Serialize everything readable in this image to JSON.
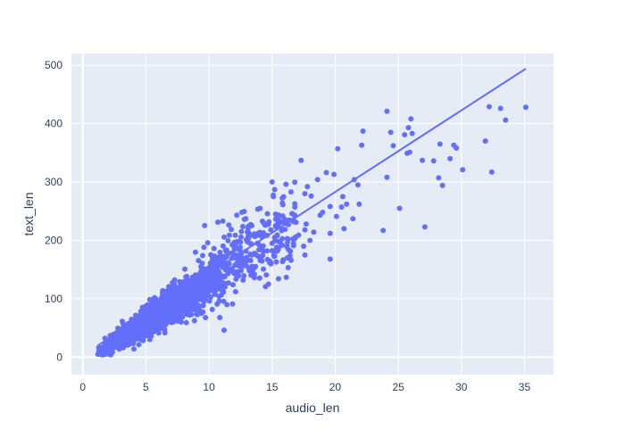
{
  "chart_data": {
    "type": "scatter",
    "xlabel": "audio_len",
    "ylabel": "text_len",
    "xlim": [
      -0.9,
      37.3
    ],
    "ylim": [
      -30,
      520
    ],
    "x_ticks": [
      0,
      5,
      10,
      15,
      20,
      25,
      30,
      35
    ],
    "y_ticks": [
      0,
      100,
      200,
      300,
      400,
      500
    ],
    "x_tick_labels": [
      "0",
      "5",
      "10",
      "15",
      "20",
      "25",
      "30",
      "35"
    ],
    "y_tick_labels": [
      "0",
      "100",
      "200",
      "300",
      "400",
      "500"
    ],
    "grid": true,
    "legend": "none",
    "colors": {
      "plot_bg": "#e5ecf6",
      "grid": "#ffffff",
      "marker": "#636efa",
      "text": "#2a3f5f"
    },
    "trendline": {
      "x": [
        1.2,
        35.1
      ],
      "y": [
        20,
        494
      ]
    },
    "scatter_cloud": {
      "description_points": [
        [
          1.2,
          5
        ],
        [
          1.5,
          10
        ],
        [
          2,
          15
        ],
        [
          2.5,
          22
        ],
        [
          3,
          30
        ],
        [
          3.5,
          40
        ],
        [
          4,
          50
        ],
        [
          4.5,
          55
        ],
        [
          5,
          65
        ],
        [
          5.5,
          75
        ],
        [
          6,
          85
        ],
        [
          6.5,
          90
        ],
        [
          7,
          100
        ],
        [
          7.5,
          110
        ],
        [
          8,
          120
        ],
        [
          8.5,
          130
        ],
        [
          9,
          140
        ],
        [
          9.5,
          150
        ],
        [
          10,
          160
        ],
        [
          11,
          170
        ],
        [
          12,
          190
        ],
        [
          13,
          200
        ],
        [
          14,
          220
        ],
        [
          15,
          230
        ],
        [
          16,
          250
        ]
      ]
    },
    "points": [
      [
        24.1,
        421
      ],
      [
        32.2,
        429
      ],
      [
        33.1,
        426
      ],
      [
        35.1,
        428
      ],
      [
        33.5,
        406
      ],
      [
        26.0,
        408
      ],
      [
        22.2,
        387
      ],
      [
        24.4,
        385
      ],
      [
        25.8,
        393
      ],
      [
        26.1,
        383
      ],
      [
        25.5,
        381
      ],
      [
        31.9,
        370
      ],
      [
        28.3,
        365
      ],
      [
        24.6,
        362
      ],
      [
        22.1,
        363
      ],
      [
        29.4,
        363
      ],
      [
        29.6,
        358
      ],
      [
        20.2,
        357
      ],
      [
        25.9,
        351
      ],
      [
        25.7,
        349
      ],
      [
        26.9,
        337
      ],
      [
        27.8,
        336
      ],
      [
        17.3,
        337
      ],
      [
        29.1,
        340
      ],
      [
        30.1,
        321
      ],
      [
        32.4,
        317
      ],
      [
        19.3,
        316
      ],
      [
        19.9,
        313
      ],
      [
        18.6,
        304
      ],
      [
        24.1,
        308
      ],
      [
        28.2,
        307
      ],
      [
        28.5,
        294
      ],
      [
        21.5,
        304
      ],
      [
        21.8,
        295
      ],
      [
        16.1,
        296
      ],
      [
        16.5,
        283
      ],
      [
        17.8,
        292
      ],
      [
        15.0,
        300
      ],
      [
        15.2,
        287
      ],
      [
        17.6,
        280
      ],
      [
        18.1,
        276
      ],
      [
        20.6,
        275
      ],
      [
        20.9,
        262
      ],
      [
        21.9,
        262
      ],
      [
        19.6,
        258
      ],
      [
        20.5,
        257
      ],
      [
        19.0,
        248
      ],
      [
        25.1,
        255
      ],
      [
        18.8,
        243
      ],
      [
        20.1,
        241
      ],
      [
        16.0,
        236
      ],
      [
        16.7,
        232
      ],
      [
        21.4,
        237
      ],
      [
        17.7,
        228
      ],
      [
        15.3,
        223
      ],
      [
        16.3,
        227
      ],
      [
        17.6,
        218
      ],
      [
        18.3,
        214
      ],
      [
        19.6,
        212
      ],
      [
        20.7,
        220
      ],
      [
        23.8,
        217
      ],
      [
        27.1,
        223
      ],
      [
        15.2,
        205
      ],
      [
        16.2,
        203
      ],
      [
        16.8,
        203
      ],
      [
        17.1,
        209
      ],
      [
        18.0,
        200
      ],
      [
        16.7,
        191
      ],
      [
        17.5,
        190
      ],
      [
        16.3,
        184
      ],
      [
        17.6,
        175
      ],
      [
        19.6,
        168
      ],
      [
        16.2,
        170
      ],
      [
        15.2,
        173
      ],
      [
        16.5,
        166
      ],
      [
        14.8,
        162
      ],
      [
        14.1,
        188
      ],
      [
        14.6,
        182
      ],
      [
        15.0,
        195
      ],
      [
        15.4,
        208
      ],
      [
        13.6,
        211
      ],
      [
        13.1,
        213
      ],
      [
        13.3,
        227
      ],
      [
        12.8,
        236
      ],
      [
        12.2,
        243
      ],
      [
        12.6,
        248
      ],
      [
        10.7,
        231
      ],
      [
        11.1,
        233
      ],
      [
        9.9,
        196
      ],
      [
        9.6,
        188
      ],
      [
        10.4,
        186
      ],
      [
        9.5,
        174
      ],
      [
        10.7,
        165
      ],
      [
        11.6,
        160
      ],
      [
        12.6,
        154
      ],
      [
        13.2,
        148
      ],
      [
        13.6,
        142
      ],
      [
        12.2,
        140
      ],
      [
        10.9,
        138
      ],
      [
        10.6,
        148
      ],
      [
        9.8,
        151
      ],
      [
        9.3,
        138
      ],
      [
        8.9,
        126
      ],
      [
        8.5,
        120
      ],
      [
        8.1,
        114
      ],
      [
        10.2,
        118
      ],
      [
        11.0,
        115
      ],
      [
        11.9,
        124
      ],
      [
        12.7,
        132
      ],
      [
        13.6,
        136
      ],
      [
        10.8,
        104
      ],
      [
        9.6,
        95
      ],
      [
        8.9,
        85
      ],
      [
        8.2,
        90
      ],
      [
        7.7,
        80
      ],
      [
        8.6,
        73
      ],
      [
        9.4,
        75
      ],
      [
        7.7,
        64
      ],
      [
        6.7,
        60
      ],
      [
        6.1,
        56
      ],
      [
        5.4,
        51
      ],
      [
        4.9,
        46
      ],
      [
        4.2,
        40
      ],
      [
        3.6,
        35
      ],
      [
        3.3,
        27
      ],
      [
        2.7,
        22
      ],
      [
        2.2,
        18
      ],
      [
        1.8,
        14
      ],
      [
        1.4,
        9
      ],
      [
        1.2,
        5
      ],
      [
        1.6,
        4
      ],
      [
        2.0,
        24
      ],
      [
        2.7,
        36
      ],
      [
        3.2,
        45
      ],
      [
        3.8,
        54
      ],
      [
        4.4,
        63
      ],
      [
        4.9,
        72
      ],
      [
        5.5,
        81
      ],
      [
        6.1,
        90
      ],
      [
        6.7,
        98
      ],
      [
        7.2,
        108
      ],
      [
        7.8,
        118
      ],
      [
        8.4,
        128
      ],
      [
        9.0,
        139
      ],
      [
        9.6,
        151
      ],
      [
        10.2,
        162
      ],
      [
        10.8,
        171
      ],
      [
        11.4,
        180
      ],
      [
        12.0,
        190
      ],
      [
        12.5,
        197
      ],
      [
        13.1,
        202
      ],
      [
        13.7,
        208
      ],
      [
        14.3,
        213
      ],
      [
        14.9,
        218
      ],
      [
        15.5,
        224
      ],
      [
        16.1,
        229
      ],
      [
        16.7,
        235
      ]
    ]
  }
}
